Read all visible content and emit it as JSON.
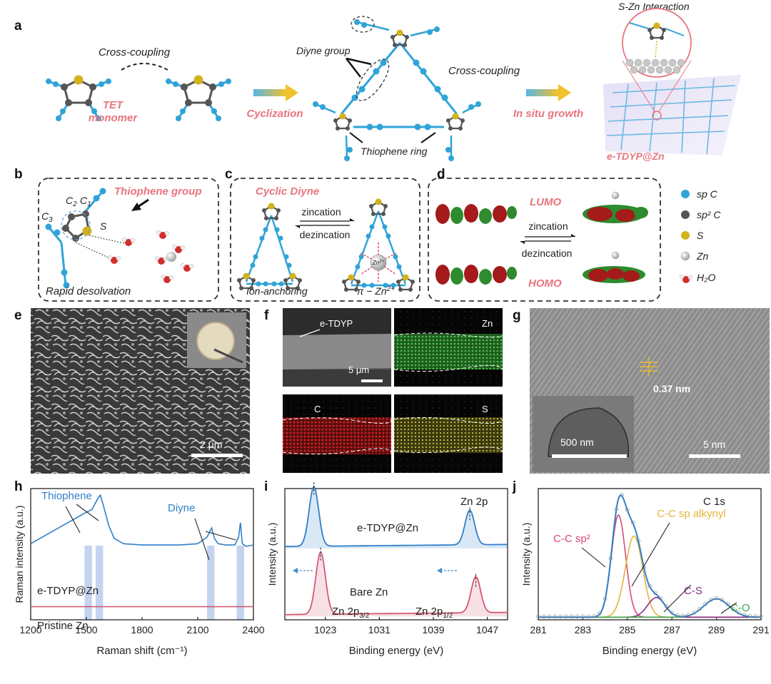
{
  "panel_letters": [
    "a",
    "b",
    "c",
    "d",
    "e",
    "f",
    "g",
    "h",
    "i",
    "j"
  ],
  "panel_a": {
    "cross_coupling_1": "Cross-coupling",
    "tet_monomer": [
      "TET",
      "monomer"
    ],
    "cyclization": "Cyclization",
    "diyne_group": "Diyne group",
    "cross_coupling_2": "Cross-coupling",
    "thiophene_ring": "Thiophene ring",
    "in_situ_growth": "In situ growth",
    "s_zn_interaction": "S-Zn Interaction",
    "product": "e-TDYP@Zn"
  },
  "panel_b": {
    "title": "Thiophene group",
    "c2": "C",
    "c2_sub": "2",
    "c1": "C",
    "c1_sub": "1",
    "c3": "C",
    "c3_sub": "3",
    "s": "S",
    "caption": "Rapid desolvation"
  },
  "panel_c": {
    "title": "Cyclic Diyne",
    "zincation": "zincation",
    "dezincation": "dezincation",
    "zn_ion": "Zn",
    "zn_ion_sup": "2+",
    "left_caption": "Ion-anchoring",
    "right_caption": "π − Zn",
    "right_caption_sup": "2+"
  },
  "panel_d": {
    "lumo": "LUMO",
    "homo": "HOMO",
    "zincation": "zincation",
    "dezincation": "dezincation"
  },
  "legend": [
    {
      "label": "sp C",
      "color": "#2fa4d8"
    },
    {
      "label": "sp² C",
      "color": "#555555"
    },
    {
      "label": "S",
      "color": "#d4b21a"
    },
    {
      "label": "Zn",
      "color": "#c8c8c8"
    },
    {
      "label": "H₂O",
      "color": "#d22d2d"
    }
  ],
  "panel_e": {
    "scale": "2 μm"
  },
  "panel_f": {
    "tiles": [
      "e-TDYP",
      "Zn",
      "C",
      "S"
    ],
    "scale": "5 μm"
  },
  "panel_g": {
    "spacing": "0.37 nm",
    "inset_scale": "500 nm",
    "scale": "5 nm"
  },
  "colors": {
    "blue_curve": "#2f7fc8",
    "pink_curve": "#d35a72",
    "highlight": "#c4d4f0",
    "accent_pink": "#e8757e"
  },
  "chart_h": {
    "type": "line",
    "xlabel": "Raman shift (cm⁻¹)",
    "ylabel": "Raman intensity (a.u.)",
    "xlim": [
      1200,
      2400
    ],
    "xticks": [
      1200,
      1500,
      1800,
      2100,
      2400
    ],
    "annotations": [
      "Thiophene",
      "Diyne"
    ],
    "bands": [
      [
        1490,
        1530
      ],
      [
        1550,
        1590
      ],
      [
        2150,
        2190
      ],
      [
        2310,
        2350
      ]
    ],
    "series": [
      {
        "name": "e-TDYP@Zn",
        "x": [
          1200,
          1250,
          1300,
          1350,
          1400,
          1450,
          1500,
          1530,
          1560,
          1575,
          1590,
          1620,
          1650,
          1700,
          1800,
          1900,
          2000,
          2100,
          2150,
          2175,
          2190,
          2210,
          2250,
          2300,
          2320,
          2330,
          2340,
          2360,
          2400
        ],
        "y": [
          0.58,
          0.62,
          0.66,
          0.7,
          0.74,
          0.78,
          0.82,
          0.84,
          0.92,
          0.95,
          0.88,
          0.72,
          0.62,
          0.58,
          0.57,
          0.57,
          0.57,
          0.58,
          0.63,
          0.7,
          0.62,
          0.58,
          0.57,
          0.57,
          0.63,
          0.74,
          0.58,
          0.56,
          0.57
        ]
      },
      {
        "name": "Pristine Zn",
        "x": [
          1200,
          1400,
          1600,
          1800,
          2000,
          2200,
          2400
        ],
        "y": [
          0.1,
          0.1,
          0.1,
          0.1,
          0.1,
          0.1,
          0.1
        ]
      }
    ]
  },
  "chart_i": {
    "type": "line",
    "xlabel": "Binding energy (eV)",
    "ylabel": "Intensity (a.u.)",
    "xlim": [
      1017,
      1050
    ],
    "xticks": [
      1023,
      1031,
      1039,
      1047
    ],
    "label_top": "Zn 2p",
    "label_bottom": "Bare Zn",
    "peak_1": "Zn 2p",
    "peak_1_sub": "3/2",
    "peak_2": "Zn 2p",
    "peak_2_sub": "1/2",
    "series": [
      {
        "name": "e-TDYP@Zn",
        "peaks": [
          1021.3,
          1044.4
        ],
        "heights": [
          0.95,
          0.55
        ],
        "baseline": 0.55
      },
      {
        "name": "Bare Zn",
        "peaks": [
          1022.3,
          1045.3
        ],
        "heights": [
          0.95,
          0.55
        ],
        "baseline": 0.0
      }
    ]
  },
  "chart_j": {
    "type": "line",
    "xlabel": "Binding energy (eV)",
    "ylabel": "Intensity (a.u.)",
    "xlim": [
      281,
      291
    ],
    "xticks": [
      281,
      283,
      285,
      287,
      289,
      291
    ],
    "label": "C 1s",
    "components": [
      {
        "name": "C-C sp²",
        "center": 284.6,
        "height": 0.78,
        "width": 0.45,
        "color": "#d9487a"
      },
      {
        "name": "C-C sp alkynyl",
        "center": 285.3,
        "height": 0.62,
        "width": 0.55,
        "color": "#e6b43a"
      },
      {
        "name": "C-S",
        "center": 286.3,
        "height": 0.15,
        "width": 0.55,
        "color": "#8a2d8a"
      },
      {
        "name": "C-O",
        "center": 289.0,
        "height": 0.14,
        "width": 0.8,
        "color": "#3aa84e"
      }
    ]
  }
}
